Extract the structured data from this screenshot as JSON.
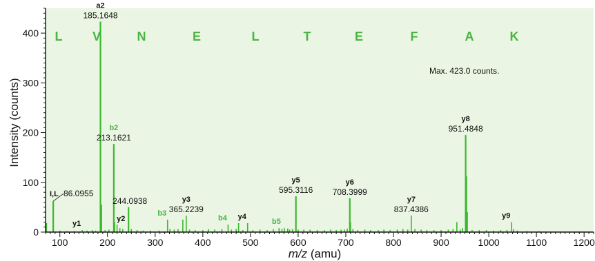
{
  "colors": {
    "background": "#eaf5e3",
    "peak": "#3cb82f",
    "b_ion": "#4ab443",
    "sequence": "#4ab443",
    "axis": "#111111"
  },
  "chart_data": {
    "type": "bar",
    "title": "",
    "xlabel_italic": "m/z",
    "xlabel_suffix": " (amu)",
    "ylabel": "Intensity (counts)",
    "xlim": [
      70,
      1220
    ],
    "ylim": [
      0,
      450
    ],
    "x_ticks": [
      100,
      200,
      300,
      400,
      500,
      600,
      700,
      800,
      900,
      1000,
      1100,
      1200
    ],
    "x_tick_labels": [
      "100",
      "200",
      "300",
      "400",
      "500",
      "600",
      "700",
      "800",
      "900",
      "1000",
      "1100",
      "1200"
    ],
    "y_ticks": [
      0,
      100,
      200,
      300,
      400
    ],
    "y_tick_labels": [
      "0",
      "100",
      "200",
      "300",
      "400"
    ],
    "annotation": "Max. 423.0 counts.",
    "sequence": [
      "L",
      "V",
      "N",
      "E",
      "L",
      "T",
      "E",
      "F",
      "A",
      "K"
    ],
    "peaks": [
      {
        "x": 72,
        "y": 18
      },
      {
        "x": 86.1,
        "y": 62
      },
      {
        "x": 100,
        "y": 3
      },
      {
        "x": 115,
        "y": 2
      },
      {
        "x": 130,
        "y": 2
      },
      {
        "x": 147,
        "y": 4
      },
      {
        "x": 157,
        "y": 3
      },
      {
        "x": 168,
        "y": 4
      },
      {
        "x": 175,
        "y": 3
      },
      {
        "x": 185.2,
        "y": 423
      },
      {
        "x": 187,
        "y": 55
      },
      {
        "x": 195,
        "y": 4
      },
      {
        "x": 203,
        "y": 5
      },
      {
        "x": 213.2,
        "y": 177
      },
      {
        "x": 215,
        "y": 20
      },
      {
        "x": 220,
        "y": 15
      },
      {
        "x": 226,
        "y": 8
      },
      {
        "x": 232,
        "y": 6
      },
      {
        "x": 244.1,
        "y": 50
      },
      {
        "x": 250,
        "y": 6
      },
      {
        "x": 262,
        "y": 4
      },
      {
        "x": 275,
        "y": 3
      },
      {
        "x": 290,
        "y": 3
      },
      {
        "x": 308,
        "y": 3
      },
      {
        "x": 326,
        "y": 25
      },
      {
        "x": 331,
        "y": 6
      },
      {
        "x": 340,
        "y": 5
      },
      {
        "x": 348,
        "y": 6
      },
      {
        "x": 358,
        "y": 25
      },
      {
        "x": 365.2,
        "y": 33
      },
      {
        "x": 372,
        "y": 5
      },
      {
        "x": 384,
        "y": 4
      },
      {
        "x": 400,
        "y": 4
      },
      {
        "x": 412,
        "y": 6
      },
      {
        "x": 425,
        "y": 5
      },
      {
        "x": 440,
        "y": 6
      },
      {
        "x": 453,
        "y": 15
      },
      {
        "x": 460,
        "y": 5
      },
      {
        "x": 470,
        "y": 6
      },
      {
        "x": 475,
        "y": 18
      },
      {
        "x": 484,
        "y": 4
      },
      {
        "x": 494,
        "y": 18
      },
      {
        "x": 505,
        "y": 4
      },
      {
        "x": 520,
        "y": 5
      },
      {
        "x": 535,
        "y": 4
      },
      {
        "x": 548,
        "y": 6
      },
      {
        "x": 560,
        "y": 8
      },
      {
        "x": 566,
        "y": 6
      },
      {
        "x": 571,
        "y": 8
      },
      {
        "x": 578,
        "y": 7
      },
      {
        "x": 582,
        "y": 5
      },
      {
        "x": 588,
        "y": 6
      },
      {
        "x": 595.3,
        "y": 72
      },
      {
        "x": 600,
        "y": 5
      },
      {
        "x": 612,
        "y": 5
      },
      {
        "x": 625,
        "y": 5
      },
      {
        "x": 640,
        "y": 4
      },
      {
        "x": 655,
        "y": 4
      },
      {
        "x": 668,
        "y": 5
      },
      {
        "x": 680,
        "y": 4
      },
      {
        "x": 690,
        "y": 5
      },
      {
        "x": 697,
        "y": 5
      },
      {
        "x": 703,
        "y": 7
      },
      {
        "x": 708.4,
        "y": 68
      },
      {
        "x": 710,
        "y": 20
      },
      {
        "x": 715,
        "y": 6
      },
      {
        "x": 725,
        "y": 4
      },
      {
        "x": 740,
        "y": 5
      },
      {
        "x": 752,
        "y": 4
      },
      {
        "x": 768,
        "y": 4
      },
      {
        "x": 780,
        "y": 5
      },
      {
        "x": 793,
        "y": 4
      },
      {
        "x": 808,
        "y": 5
      },
      {
        "x": 820,
        "y": 6
      },
      {
        "x": 830,
        "y": 5
      },
      {
        "x": 837.4,
        "y": 33
      },
      {
        "x": 845,
        "y": 6
      },
      {
        "x": 858,
        "y": 5
      },
      {
        "x": 870,
        "y": 4
      },
      {
        "x": 885,
        "y": 4
      },
      {
        "x": 900,
        "y": 4
      },
      {
        "x": 915,
        "y": 5
      },
      {
        "x": 925,
        "y": 6
      },
      {
        "x": 933,
        "y": 20
      },
      {
        "x": 940,
        "y": 5
      },
      {
        "x": 945,
        "y": 8
      },
      {
        "x": 951.5,
        "y": 195
      },
      {
        "x": 953,
        "y": 112
      },
      {
        "x": 955,
        "y": 40
      },
      {
        "x": 965,
        "y": 4
      },
      {
        "x": 980,
        "y": 4
      },
      {
        "x": 995,
        "y": 4
      },
      {
        "x": 1010,
        "y": 3
      },
      {
        "x": 1025,
        "y": 4
      },
      {
        "x": 1038,
        "y": 4
      },
      {
        "x": 1048,
        "y": 20
      },
      {
        "x": 1052,
        "y": 6
      },
      {
        "x": 1060,
        "y": 3
      },
      {
        "x": 1080,
        "y": 2
      },
      {
        "x": 1105,
        "y": 2
      },
      {
        "x": 1130,
        "y": 1
      },
      {
        "x": 1160,
        "y": 1
      },
      {
        "x": 1190,
        "y": 1
      }
    ],
    "labels": [
      {
        "ion": "I,L",
        "mz": "86.0955",
        "x": 86.1,
        "y": 62,
        "type": "imm"
      },
      {
        "ion": "a2",
        "mz": "185.1648",
        "x": 185.2,
        "y": 423,
        "type": "a"
      },
      {
        "ion": "b2",
        "mz": "213.1621",
        "x": 213.2,
        "y": 177,
        "type": "b"
      },
      {
        "ion": "y2",
        "mz": "244.0938",
        "x": 244.1,
        "y": 50,
        "type": "y2"
      },
      {
        "ion": "y1",
        "mz": "",
        "x": 147,
        "y": 4,
        "type": "y"
      },
      {
        "ion": "b3",
        "mz": "",
        "x": 326,
        "y": 25,
        "type": "b"
      },
      {
        "ion": "y3",
        "mz": "365.2239",
        "x": 365.2,
        "y": 33,
        "type": "y"
      },
      {
        "ion": "b4",
        "mz": "",
        "x": 453,
        "y": 15,
        "type": "b"
      },
      {
        "ion": "y4",
        "mz": "",
        "x": 494,
        "y": 18,
        "type": "y"
      },
      {
        "ion": "b5",
        "mz": "",
        "x": 566,
        "y": 8,
        "type": "b"
      },
      {
        "ion": "y5",
        "mz": "595.3116",
        "x": 595.3,
        "y": 72,
        "type": "y"
      },
      {
        "ion": "y6",
        "mz": "708.3999",
        "x": 708.4,
        "y": 68,
        "type": "y"
      },
      {
        "ion": "y7",
        "mz": "837.4386",
        "x": 837.4,
        "y": 33,
        "type": "y"
      },
      {
        "ion": "y8",
        "mz": "951.4848",
        "x": 951.5,
        "y": 195,
        "type": "y"
      },
      {
        "ion": "y9",
        "mz": "",
        "x": 1048,
        "y": 20,
        "type": "y"
      }
    ]
  }
}
